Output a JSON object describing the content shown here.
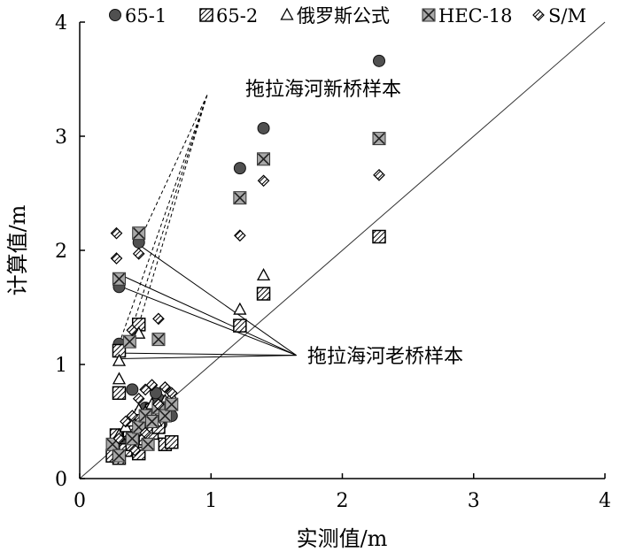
{
  "chart_data": {
    "type": "scatter",
    "title": "",
    "xlabel": "实测值/m",
    "ylabel": "计算值/m",
    "xlim": [
      0,
      4
    ],
    "ylim": [
      0,
      4
    ],
    "xticks": [
      "0",
      "1",
      "2",
      "3",
      "4"
    ],
    "yticks": [
      "0",
      "1",
      "2",
      "3",
      "4"
    ],
    "legend_position": "top",
    "reference_line": {
      "name": "1:1 line",
      "from": [
        0,
        0
      ],
      "to": [
        4,
        4
      ]
    },
    "series": [
      {
        "name": "65-1",
        "marker": "filled-circle",
        "points": [
          [
            0.3,
            1.18
          ],
          [
            0.3,
            1.68
          ],
          [
            0.45,
            2.07
          ],
          [
            0.4,
            0.78
          ],
          [
            0.27,
            0.25
          ],
          [
            0.3,
            0.32
          ],
          [
            0.4,
            0.4
          ],
          [
            0.45,
            0.55
          ],
          [
            0.5,
            0.62
          ],
          [
            0.55,
            0.58
          ],
          [
            0.6,
            0.7
          ],
          [
            0.65,
            0.6
          ],
          [
            0.7,
            0.55
          ],
          [
            0.35,
            0.3
          ],
          [
            0.5,
            0.5
          ],
          [
            0.58,
            0.75
          ],
          [
            0.62,
            0.48
          ],
          [
            1.22,
            2.72
          ],
          [
            1.4,
            3.07
          ],
          [
            2.28,
            3.66
          ]
        ]
      },
      {
        "name": "65-2",
        "marker": "hatched-square",
        "points": [
          [
            0.3,
            0.75
          ],
          [
            0.3,
            1.12
          ],
          [
            0.45,
            1.35
          ],
          [
            0.25,
            0.2
          ],
          [
            0.3,
            0.18
          ],
          [
            0.35,
            0.25
          ],
          [
            0.4,
            0.3
          ],
          [
            0.45,
            0.22
          ],
          [
            0.5,
            0.35
          ],
          [
            0.55,
            0.4
          ],
          [
            0.6,
            0.45
          ],
          [
            0.65,
            0.3
          ],
          [
            0.7,
            0.32
          ],
          [
            0.38,
            0.42
          ],
          [
            0.47,
            0.55
          ],
          [
            0.55,
            0.6
          ],
          [
            0.28,
            0.38
          ],
          [
            1.22,
            1.34
          ],
          [
            1.4,
            1.62
          ],
          [
            2.28,
            2.12
          ]
        ]
      },
      {
        "name": "俄罗斯公式",
        "marker": "open-triangle",
        "points": [
          [
            0.3,
            0.87
          ],
          [
            0.3,
            1.03
          ],
          [
            0.45,
            1.27
          ],
          [
            0.3,
            0.38
          ],
          [
            0.35,
            0.45
          ],
          [
            0.4,
            0.5
          ],
          [
            0.45,
            0.6
          ],
          [
            0.5,
            0.58
          ],
          [
            0.55,
            0.65
          ],
          [
            0.6,
            0.55
          ],
          [
            0.65,
            0.68
          ],
          [
            0.7,
            0.72
          ],
          [
            0.48,
            0.42
          ],
          [
            0.58,
            0.5
          ],
          [
            1.22,
            1.48
          ],
          [
            1.4,
            1.78
          ]
        ]
      },
      {
        "name": "HEC-18",
        "marker": "x-square",
        "points": [
          [
            0.3,
            1.75
          ],
          [
            0.45,
            2.15
          ],
          [
            0.38,
            1.2
          ],
          [
            0.6,
            1.22
          ],
          [
            0.25,
            0.3
          ],
          [
            0.3,
            0.2
          ],
          [
            0.4,
            0.35
          ],
          [
            0.45,
            0.45
          ],
          [
            0.5,
            0.55
          ],
          [
            0.55,
            0.5
          ],
          [
            0.6,
            0.62
          ],
          [
            0.65,
            0.55
          ],
          [
            0.7,
            0.65
          ],
          [
            0.52,
            0.3
          ],
          [
            1.22,
            2.46
          ],
          [
            1.4,
            2.8
          ],
          [
            2.28,
            2.98
          ]
        ]
      },
      {
        "name": "S/M",
        "marker": "hatched-diamond",
        "points": [
          [
            0.28,
            2.15
          ],
          [
            0.28,
            1.93
          ],
          [
            0.45,
            1.97
          ],
          [
            0.4,
            1.3
          ],
          [
            0.6,
            1.4
          ],
          [
            0.3,
            0.35
          ],
          [
            0.35,
            0.5
          ],
          [
            0.4,
            0.55
          ],
          [
            0.45,
            0.7
          ],
          [
            0.5,
            0.78
          ],
          [
            0.55,
            0.82
          ],
          [
            0.6,
            0.65
          ],
          [
            0.65,
            0.8
          ],
          [
            0.7,
            0.75
          ],
          [
            0.42,
            0.25
          ],
          [
            0.5,
            0.4
          ],
          [
            1.22,
            2.13
          ],
          [
            1.4,
            2.61
          ],
          [
            2.28,
            2.66
          ]
        ]
      }
    ],
    "annotations": [
      {
        "name": "new-bridge",
        "text": "拖拉海河新桥样本",
        "anchor": [
          1.28,
          3.35
        ],
        "leader_style": "dashed",
        "leader_origin": [
          0.97,
          3.36
        ],
        "targets": [
          [
            0.3,
            1.18
          ],
          [
            0.37,
            1.22
          ],
          [
            0.45,
            1.35
          ],
          [
            0.45,
            2.07
          ]
        ]
      },
      {
        "name": "old-bridge",
        "text": "拖拉海河老桥样本",
        "anchor": [
          1.75,
          1.04
        ],
        "leader_style": "solid",
        "leader_origin": [
          1.65,
          1.08
        ],
        "targets": [
          [
            0.45,
            2.05
          ],
          [
            0.32,
            1.78
          ],
          [
            0.32,
            1.68
          ],
          [
            0.3,
            1.1
          ],
          [
            0.3,
            1.05
          ]
        ]
      }
    ]
  }
}
